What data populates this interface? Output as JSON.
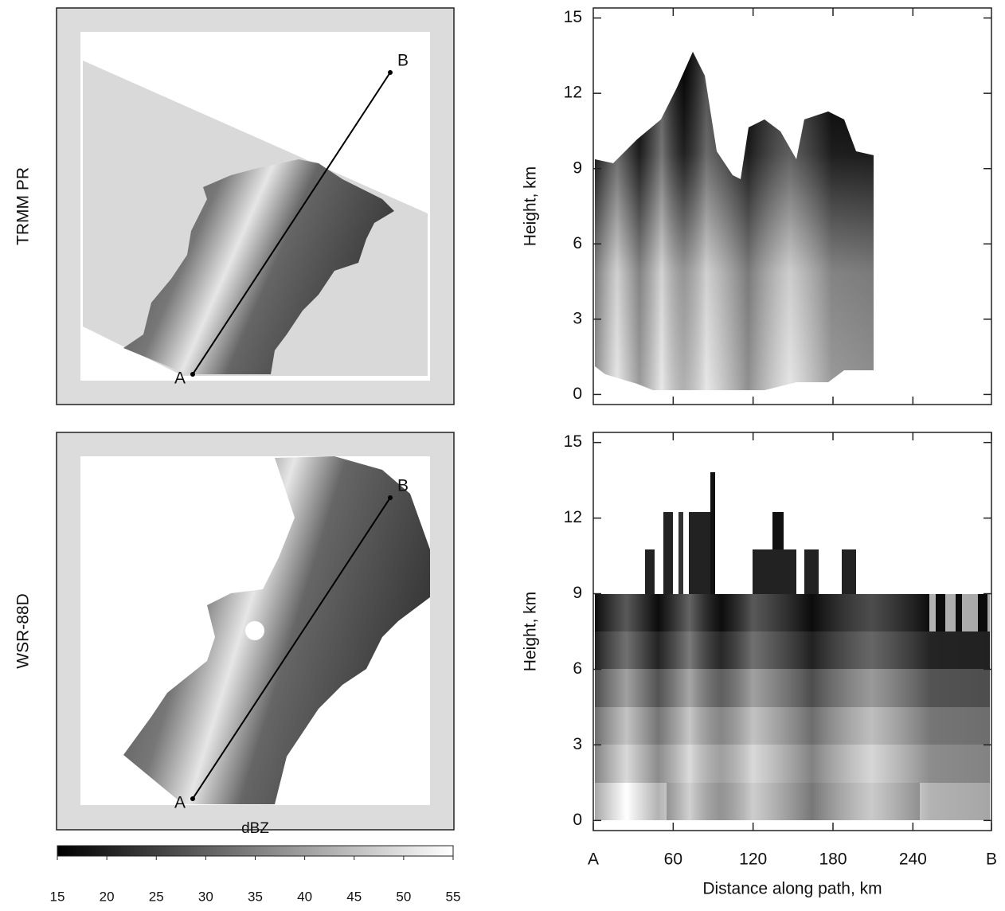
{
  "chart_data": [
    {
      "type": "map",
      "ylabel": "TRMM PR",
      "point_labels": [
        "A",
        "B"
      ]
    },
    {
      "type": "heatmap",
      "ylabel": "Height, km",
      "xlim": [
        0,
        299
      ],
      "xticks": [
        60,
        120,
        180,
        240
      ],
      "ylim": [
        -0.4,
        15.4
      ],
      "yticks": [
        0,
        3,
        6,
        9,
        12,
        15
      ]
    },
    {
      "type": "map",
      "ylabel": "WSR-88D",
      "point_labels": [
        "A",
        "B"
      ]
    },
    {
      "type": "heatmap",
      "ylabel": "Height, km",
      "xlabel": "Distance along path, km",
      "xlim": [
        0,
        299
      ],
      "xticks": [
        {
          "value": 0,
          "label": "A"
        },
        60,
        120,
        180,
        240,
        {
          "value": 299,
          "label": "B"
        }
      ],
      "ylim": [
        -0.4,
        15.4
      ],
      "yticks": [
        0,
        3,
        6,
        9,
        12,
        15
      ]
    },
    {
      "type": "colorbar",
      "label": "dBZ",
      "xlim": [
        15,
        55
      ],
      "xticks": [
        15,
        20,
        25,
        30,
        35,
        40,
        45,
        50,
        55
      ]
    }
  ]
}
